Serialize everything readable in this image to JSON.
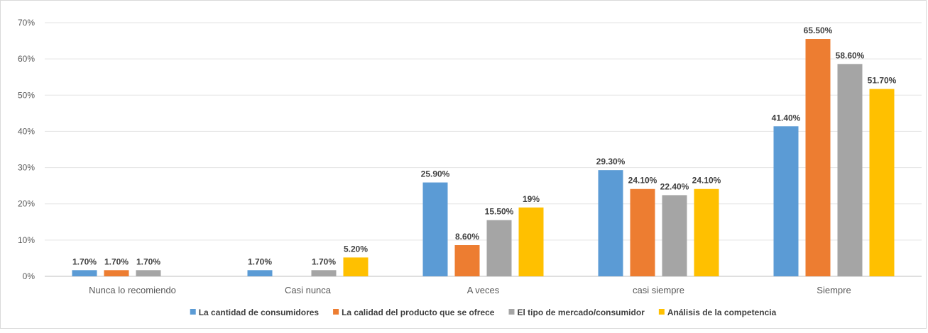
{
  "chart_data": {
    "type": "bar",
    "categories": [
      "Nunca lo recomiendo",
      "Casi nunca",
      "A veces",
      "casi siempre",
      "Siempre"
    ],
    "series": [
      {
        "name": "La cantidad de consumidores",
        "color": "#5B9BD5",
        "values": [
          1.7,
          1.7,
          25.9,
          29.3,
          41.4
        ],
        "labels": [
          "1.70%",
          "1.70%",
          "25.90%",
          "29.30%",
          "41.40%"
        ]
      },
      {
        "name": "La calidad del producto que se ofrece",
        "color": "#ED7D31",
        "values": [
          1.7,
          null,
          8.6,
          24.1,
          65.5
        ],
        "labels": [
          "1.70%",
          "",
          "8.60%",
          "24.10%",
          "65.50%"
        ]
      },
      {
        "name": "El tipo de mercado/consumidor",
        "color": "#A5A5A5",
        "values": [
          1.7,
          1.7,
          15.5,
          22.4,
          58.6
        ],
        "labels": [
          "1.70%",
          "1.70%",
          "15.50%",
          "22.40%",
          "58.60%"
        ]
      },
      {
        "name": "Análisis de la competencia",
        "color": "#FFC000",
        "values": [
          null,
          5.2,
          19,
          24.1,
          51.7
        ],
        "labels": [
          "",
          "5.20%",
          "19%",
          "24.10%",
          "51.70%"
        ]
      }
    ],
    "yticks": [
      "0%",
      "10%",
      "20%",
      "30%",
      "40%",
      "50%",
      "60%",
      "70%"
    ],
    "ylim": [
      0,
      70
    ],
    "grid": true,
    "legend_position": "bottom"
  }
}
